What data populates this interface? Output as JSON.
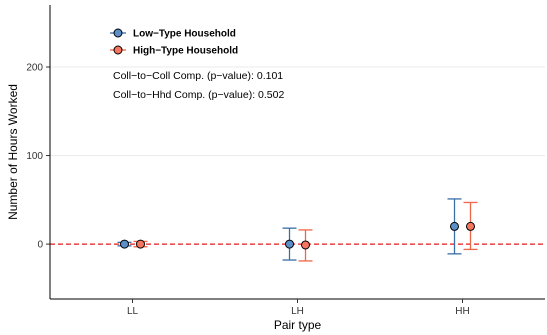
{
  "chart_data": {
    "type": "scatter",
    "xlabel": "Pair type",
    "ylabel": "Number of Hours Worked",
    "categories": [
      "LL",
      "LH",
      "HH"
    ],
    "ylim": [
      -62,
      270
    ],
    "y_ticks": [
      0,
      100,
      200
    ],
    "y_tick_labels": [
      "0",
      "100",
      "200"
    ],
    "grid": "horizontal major",
    "legend_position": "top-left",
    "reference_line": {
      "y": 0,
      "style": "dashed",
      "color": "#e41a1c"
    },
    "series": [
      {
        "name": "Low−Type Household",
        "color": "#3a6fa6",
        "points": [
          {
            "x": "LL",
            "y": 0,
            "lower": -2,
            "upper": 2
          },
          {
            "x": "LH",
            "y": 0,
            "lower": -18,
            "upper": 18
          },
          {
            "x": "HH",
            "y": 20,
            "lower": -11,
            "upper": 51
          }
        ]
      },
      {
        "name": "High−Type Household",
        "color": "#ef6548",
        "points": [
          {
            "x": "LL",
            "y": 0,
            "lower": -3,
            "upper": 3
          },
          {
            "x": "LH",
            "y": -1,
            "lower": -19,
            "upper": 16
          },
          {
            "x": "HH",
            "y": 20,
            "lower": -6,
            "upper": 47
          }
        ]
      }
    ],
    "annotations": [
      "Coll−to−Coll Comp. (p−value): 0.101",
      "Coll−to−Hhd Comp. (p−value): 0.502"
    ],
    "colors": {
      "grid": "#ebebeb",
      "axis": "#000000",
      "point_fill_low": "#5b8fc7",
      "point_fill_high": "#f47560"
    }
  }
}
